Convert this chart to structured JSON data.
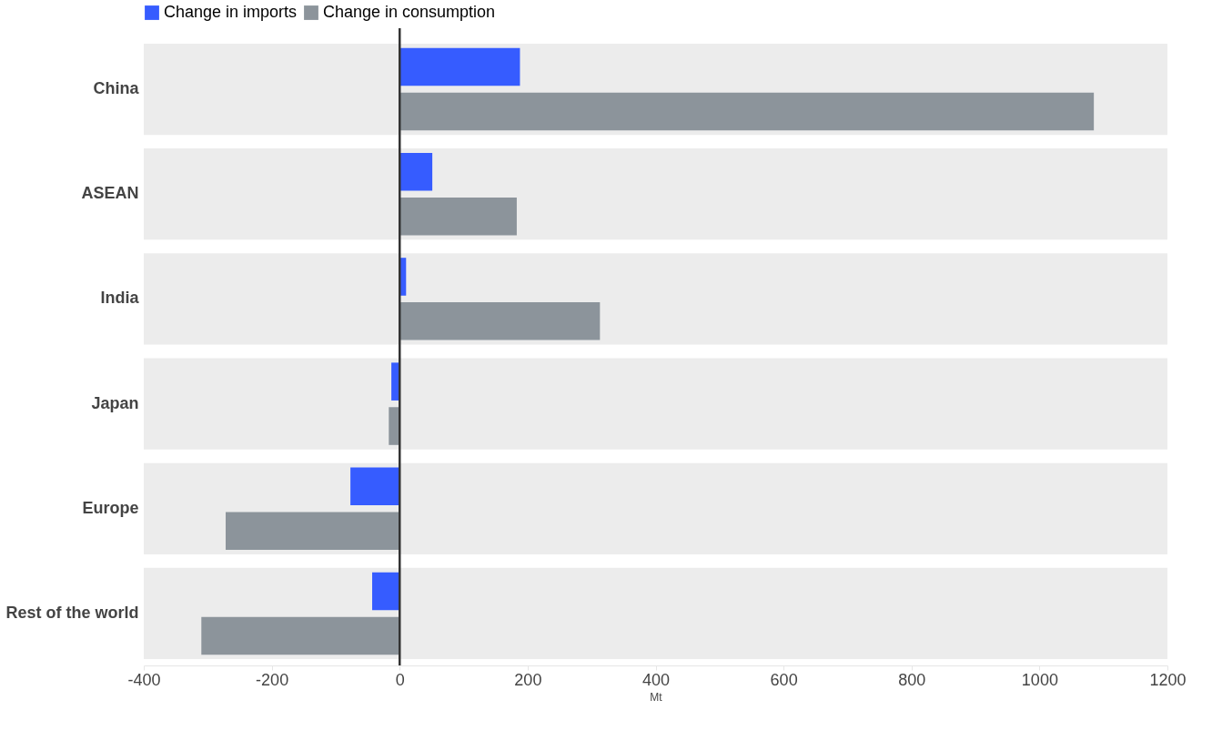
{
  "chart_data": {
    "type": "bar",
    "orientation": "horizontal",
    "xlabel": "Mt",
    "categories": [
      "China",
      "ASEAN",
      "India",
      "Japan",
      "Europe",
      "Rest of the world"
    ],
    "series": [
      {
        "name": "Change in imports",
        "color": "#365cff",
        "values": [
          188,
          51,
          10,
          -13,
          -77,
          -43
        ]
      },
      {
        "name": "Change in consumption",
        "color": "#8c949b",
        "values": [
          1085,
          183,
          313,
          -17,
          -272,
          -310
        ]
      }
    ],
    "xlim": [
      -400,
      1200
    ],
    "xticks": [
      -400,
      -200,
      0,
      200,
      400,
      600,
      800,
      1000,
      1200
    ],
    "ref_lines": [
      {
        "axis": "x",
        "value": 0,
        "color": "#333333"
      }
    ],
    "bands": [
      {
        "axis": "y",
        "from": "China",
        "to": "China",
        "color": "#ececec"
      },
      {
        "axis": "y",
        "from": "ASEAN",
        "to": "ASEAN",
        "color": "#ececec"
      },
      {
        "axis": "y",
        "from": "India",
        "to": "India",
        "color": "#ececec"
      },
      {
        "axis": "y",
        "from": "Japan",
        "to": "Japan",
        "color": "#ececec"
      },
      {
        "axis": "y",
        "from": "Europe",
        "to": "Europe",
        "color": "#ececec"
      },
      {
        "axis": "y",
        "from": "Rest of the world",
        "to": "Rest of the world",
        "color": "#ececec"
      }
    ],
    "legend": "top",
    "grid": false
  }
}
